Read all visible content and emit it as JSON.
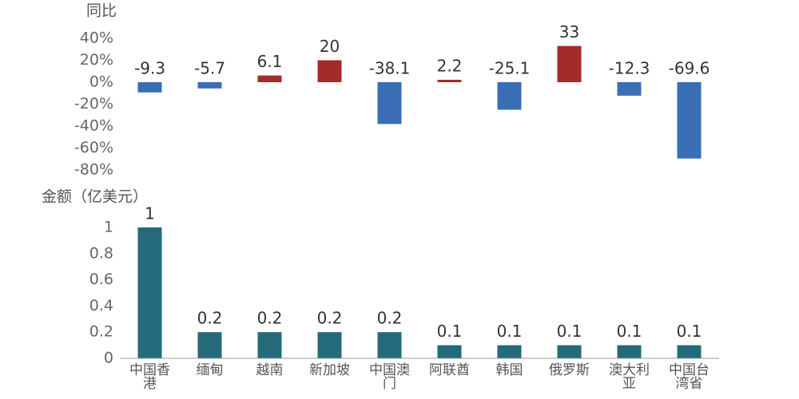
{
  "chart_data": [
    {
      "type": "bar",
      "y_label": "同比",
      "values": [
        -9.3,
        -5.7,
        6.1,
        20,
        -38.1,
        2.2,
        -25.1,
        33,
        -12.3,
        -69.6
      ],
      "positive_color": "#a52a2a",
      "negative_color": "#3a6eb5",
      "ylim": [
        -80,
        40
      ],
      "yticks": [
        {
          "value": -80,
          "label": "-80%"
        },
        {
          "value": -60,
          "label": "-60%"
        },
        {
          "value": -40,
          "label": "-40%"
        },
        {
          "value": -20,
          "label": "-20%"
        },
        {
          "value": 0,
          "label": "0%"
        },
        {
          "value": 20,
          "label": "20%"
        },
        {
          "value": 40,
          "label": "40%"
        }
      ]
    },
    {
      "type": "bar",
      "y_label": "金额（亿美元）",
      "categories": [
        "中国香港",
        "缅甸",
        "越南",
        "新加坡",
        "中国澳门",
        "阿联酋",
        "韩国",
        "俄罗斯",
        "澳大利亚",
        "中国台湾省"
      ],
      "values": [
        1,
        0.2,
        0.2,
        0.2,
        0.2,
        0.1,
        0.1,
        0.1,
        0.1,
        0.1
      ],
      "color": "#246a7a",
      "ylim": [
        0,
        1
      ],
      "yticks": [
        0,
        0.2,
        0.4,
        0.6,
        0.8,
        1
      ]
    }
  ]
}
